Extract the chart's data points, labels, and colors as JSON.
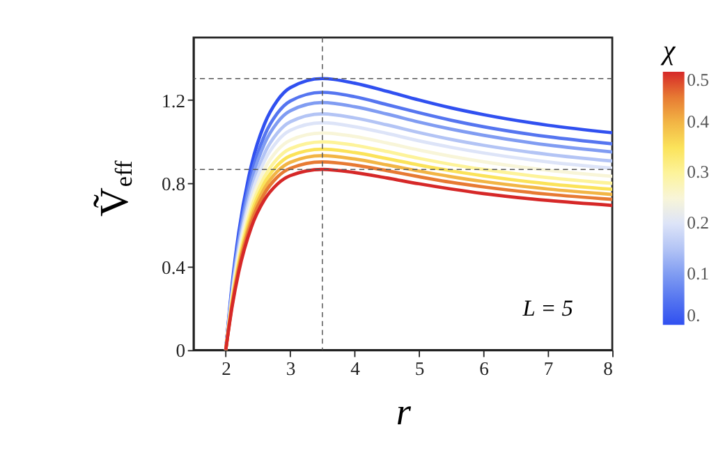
{
  "chart_data": {
    "type": "line",
    "xlabel": "r",
    "ylabel": "Ṽ$_{eff}$",
    "legend_title": "χ",
    "x": [
      2,
      2.1,
      2.2,
      2.4,
      2.6,
      2.8,
      3,
      3.5,
      4,
      4.5,
      5,
      5.5,
      6,
      7,
      8
    ],
    "series": [
      {
        "color": "#3050f0",
        "values": [
          0,
          0.318,
          0.561,
          0.89,
          1.084,
          1.197,
          1.259,
          1.303,
          1.281,
          1.242,
          1.2,
          1.162,
          1.13,
          1.079,
          1.043
        ]
      },
      {
        "color": "#5575f0",
        "values": [
          0,
          0.302,
          0.532,
          0.845,
          1.029,
          1.136,
          1.195,
          1.237,
          1.216,
          1.178,
          1.139,
          1.103,
          1.072,
          1.024,
          0.99
        ]
      },
      {
        "color": "#809cf2",
        "values": [
          0,
          0.29,
          0.512,
          0.812,
          0.989,
          1.092,
          1.148,
          1.188,
          1.168,
          1.133,
          1.094,
          1.06,
          1.031,
          0.984,
          0.951
        ]
      },
      {
        "color": "#b3c4f5",
        "values": [
          0,
          0.277,
          0.488,
          0.774,
          0.943,
          1.041,
          1.095,
          1.134,
          1.114,
          1.081,
          1.044,
          1.011,
          0.983,
          0.939,
          0.907
        ]
      },
      {
        "color": "#dde4f8",
        "values": [
          0,
          0.266,
          0.47,
          0.745,
          0.907,
          1.002,
          1.054,
          1.091,
          1.072,
          1.04,
          1.004,
          0.973,
          0.946,
          0.903,
          0.873
        ]
      },
      {
        "color": "#f8f5d8",
        "values": [
          0,
          0.254,
          0.449,
          0.712,
          0.867,
          0.958,
          1.007,
          1.042,
          1.025,
          0.994,
          0.96,
          0.93,
          0.904,
          0.863,
          0.834
        ]
      },
      {
        "color": "#fdf39a",
        "values": [
          0,
          0.244,
          0.43,
          0.683,
          0.831,
          0.918,
          0.966,
          0.999,
          0.983,
          0.953,
          0.92,
          0.891,
          0.867,
          0.828,
          0.8
        ]
      },
      {
        "color": "#fbe35a",
        "values": [
          0,
          0.235,
          0.415,
          0.659,
          0.802,
          0.886,
          0.932,
          0.964,
          0.948,
          0.919,
          0.888,
          0.86,
          0.836,
          0.798,
          0.772
        ]
      },
      {
        "color": "#f2b545",
        "values": [
          0,
          0.228,
          0.402,
          0.637,
          0.776,
          0.857,
          0.901,
          0.933,
          0.917,
          0.889,
          0.859,
          0.832,
          0.809,
          0.773,
          0.747
        ]
      },
      {
        "color": "#e77a33",
        "values": [
          0,
          0.22,
          0.389,
          0.617,
          0.751,
          0.83,
          0.872,
          0.903,
          0.888,
          0.861,
          0.832,
          0.805,
          0.783,
          0.748,
          0.723
        ]
      },
      {
        "color": "#d62828",
        "values": [
          0,
          0.211,
          0.373,
          0.592,
          0.721,
          0.796,
          0.837,
          0.867,
          0.852,
          0.826,
          0.798,
          0.773,
          0.751,
          0.718,
          0.694
        ]
      }
    ],
    "xlim": [
      1.5,
      8
    ],
    "xticks": [
      2,
      3,
      4,
      5,
      6,
      7,
      8
    ],
    "ylim": [
      0,
      1.5
    ],
    "yticks": [
      0,
      0.4,
      0.8,
      1.2
    ],
    "clim": [
      0,
      0.5
    ],
    "cticks": [
      {
        "value": 0,
        "label": "0."
      },
      0.1,
      0.2,
      0.3,
      0.4,
      0.5
    ],
    "ref_lines": [
      {
        "axis": "x",
        "value": 3.5,
        "label": null,
        "color": "#555555",
        "line_style": "dashed"
      },
      {
        "axis": "y",
        "value": 1.303,
        "label": null,
        "color": "#555555",
        "line_style": "dashed"
      },
      {
        "axis": "y",
        "value": 0.867,
        "label": null,
        "color": "#555555",
        "line_style": "dashed"
      }
    ],
    "annotations": [
      "L = 5"
    ],
    "grid": false,
    "marker": "none",
    "line_style": "solid"
  }
}
